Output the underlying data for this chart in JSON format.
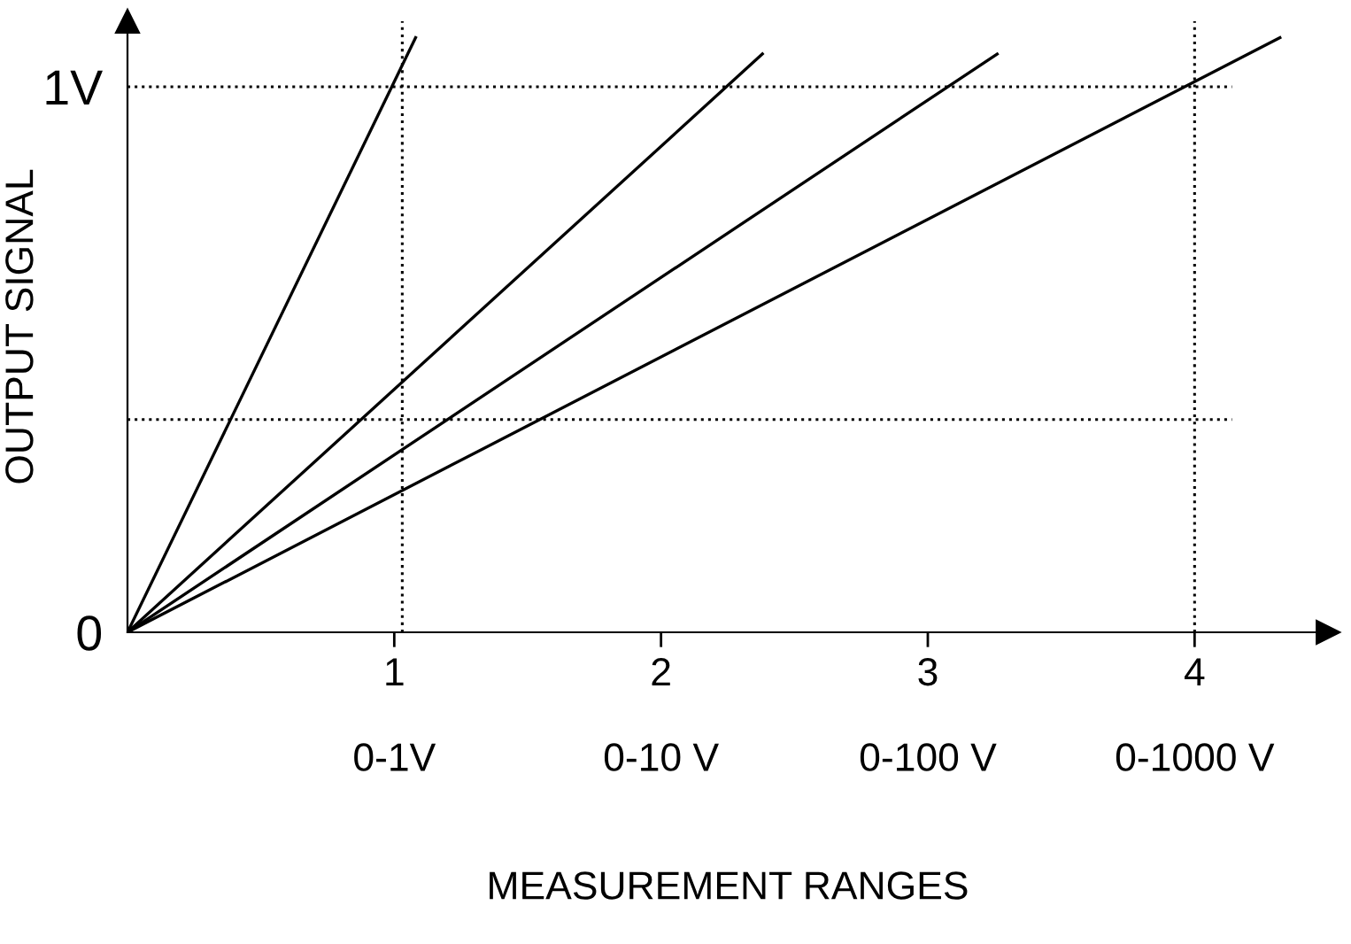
{
  "chart_data": {
    "type": "line",
    "xlabel": "MEASUREMENT RANGES",
    "ylabel": "OUTPUT SIGNAL",
    "series": [
      {
        "x": [
          0,
          1.08
        ],
        "values": [
          0,
          1.09
        ],
        "color": "#000000"
      },
      {
        "x": [
          0,
          2.38
        ],
        "values": [
          0,
          1.06
        ],
        "color": "#000000"
      },
      {
        "x": [
          0,
          3.26
        ],
        "values": [
          0,
          1.06
        ],
        "color": "#000000"
      },
      {
        "x": [
          0,
          4.32
        ],
        "values": [
          0,
          1.09
        ],
        "color": "#000000"
      }
    ],
    "xlim": [
      0,
      4.5
    ],
    "ylim": [
      0,
      1.12
    ],
    "xticks": [
      1,
      2,
      3,
      4
    ],
    "annotations": [
      "0-1V",
      "0-10 V",
      "0-100 V",
      "0-1000 V"
    ],
    "yticks": [
      0,
      {
        "value": 1,
        "label": "1V"
      }
    ],
    "ref_lines": [
      {
        "axis": "y",
        "value": 1,
        "color": "#000000",
        "line_style": "dotted"
      },
      {
        "axis": "y",
        "value": 0.39,
        "color": "#000000",
        "line_style": "dotted"
      },
      {
        "axis": "x",
        "value": 1.03,
        "color": "#000000",
        "line_style": "dotted"
      },
      {
        "axis": "x",
        "value": 4.0,
        "color": "#000000",
        "line_style": "dotted"
      }
    ],
    "grid": false,
    "legend": false,
    "marker": "none",
    "line_style": "solid"
  }
}
